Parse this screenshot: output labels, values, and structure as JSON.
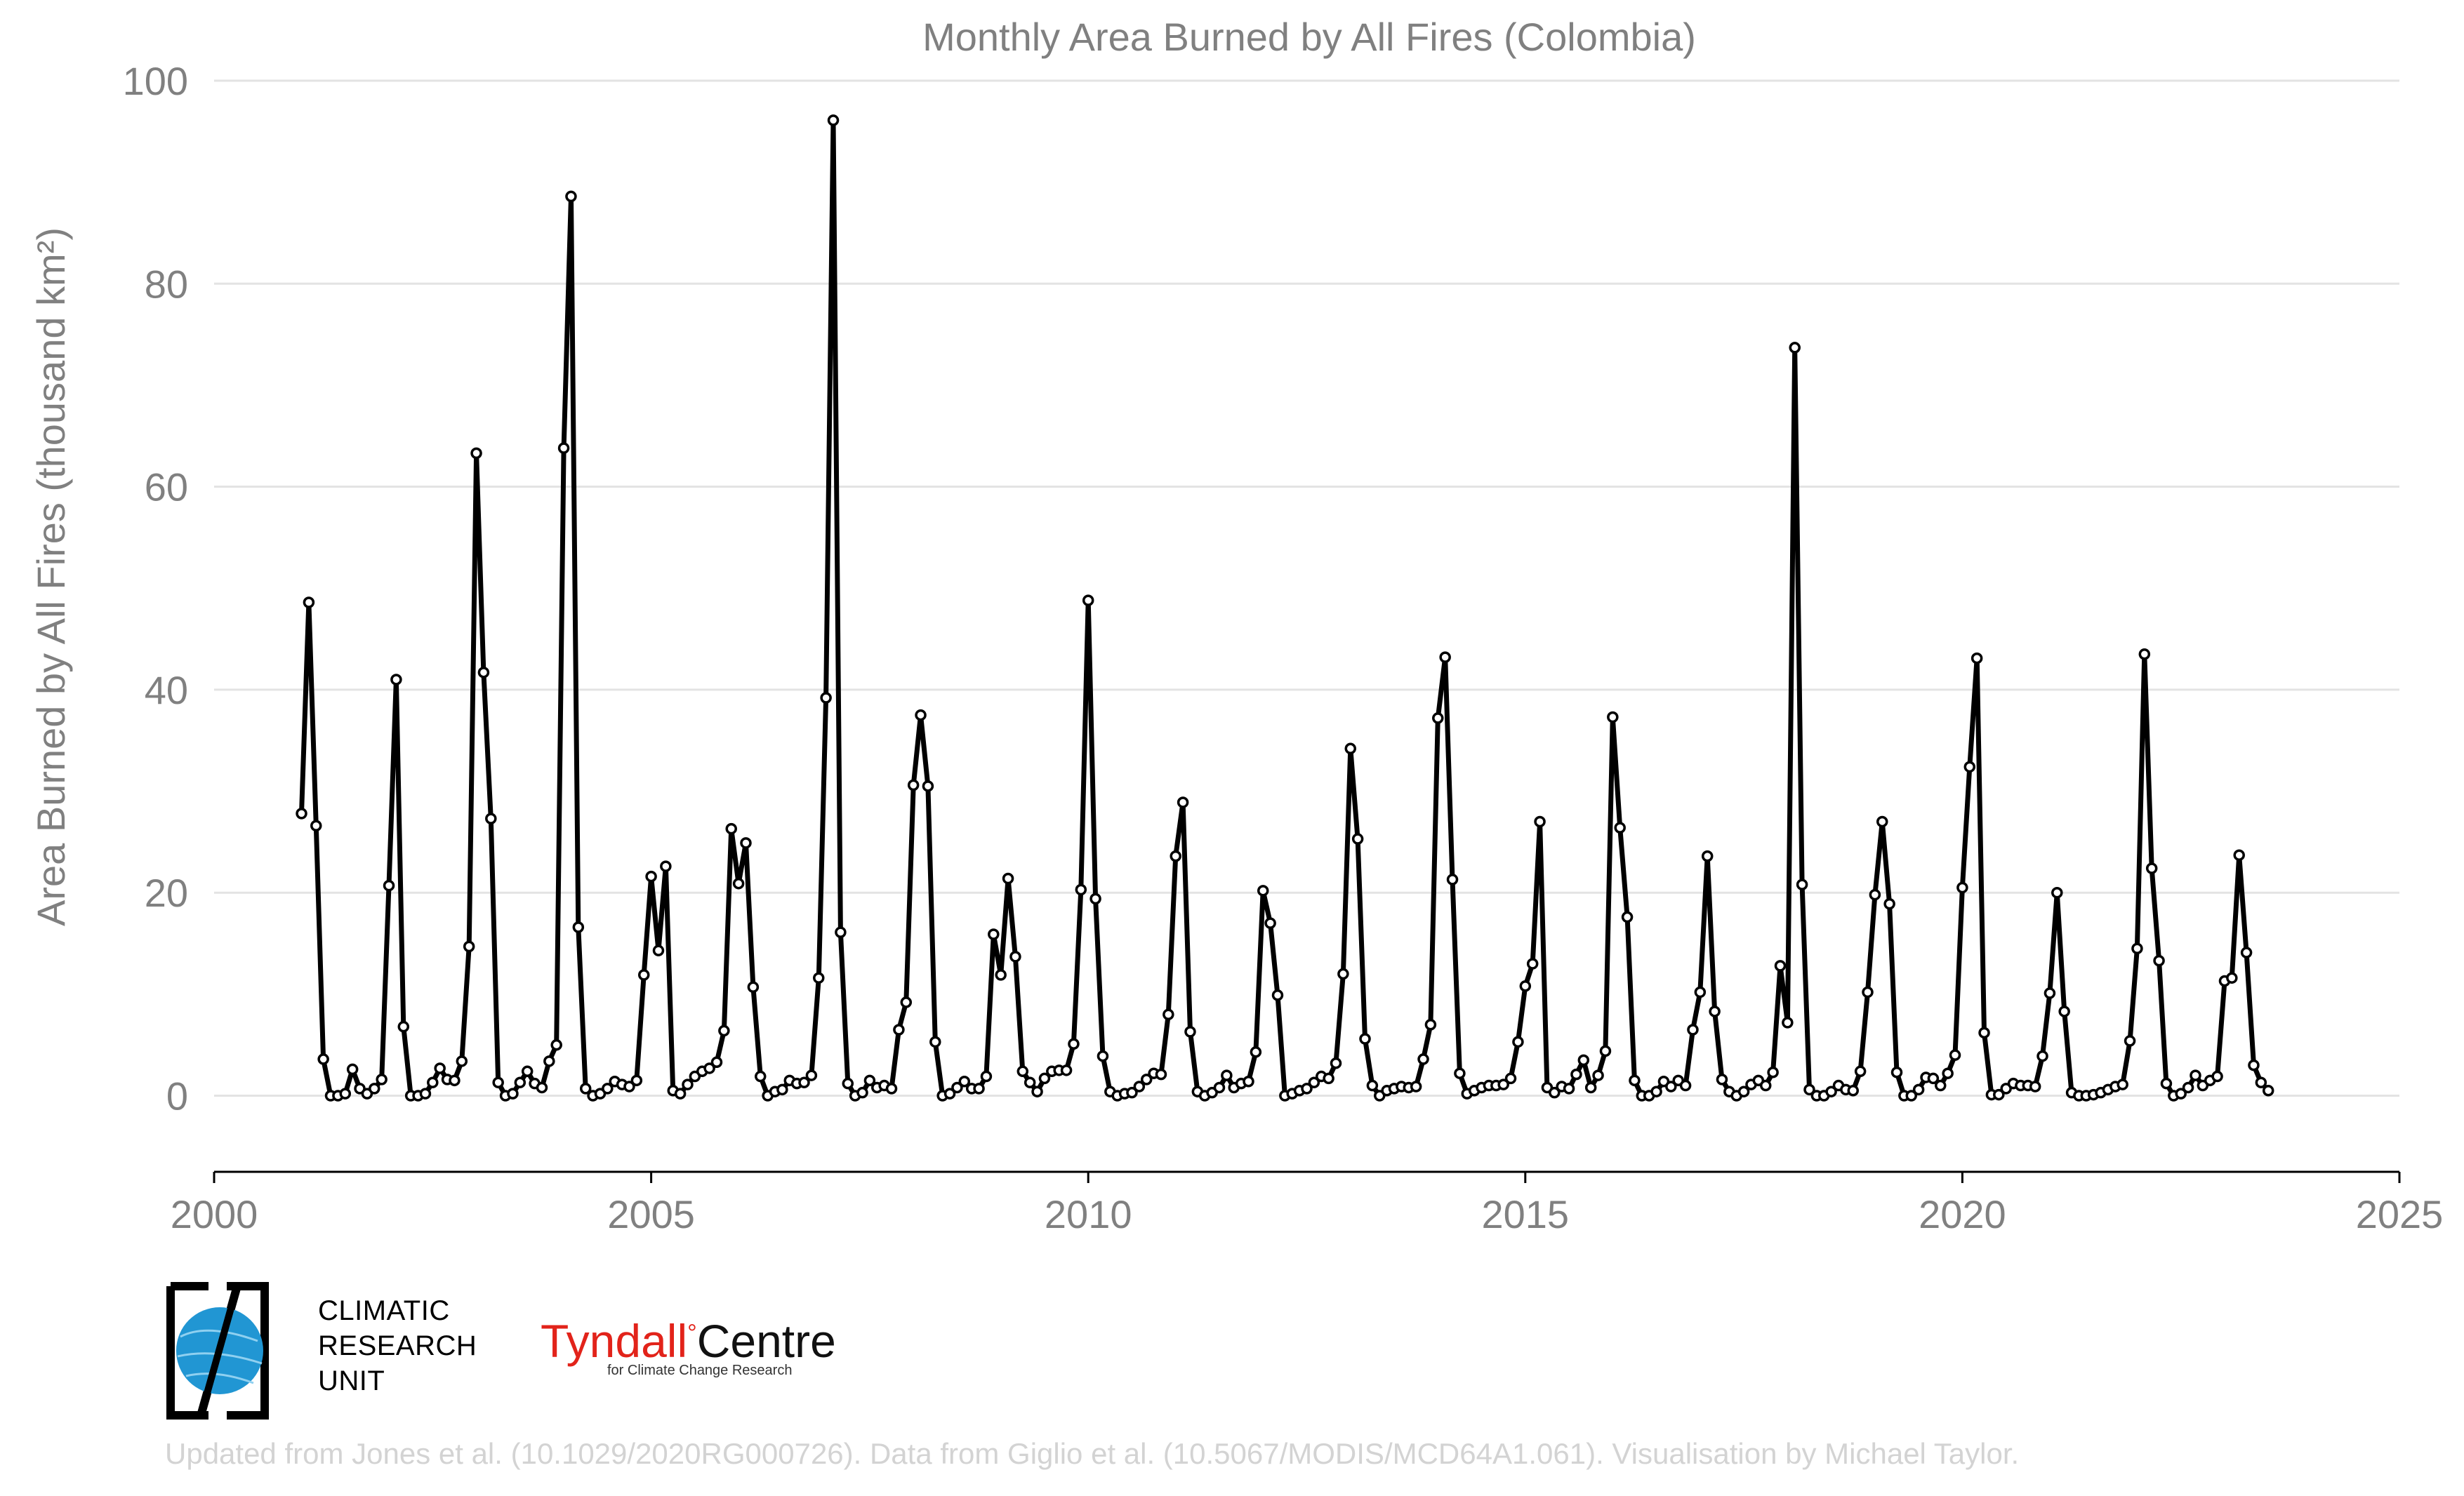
{
  "chart_data": {
    "type": "line",
    "title": "Monthly Area Burned by All Fires (Colombia)",
    "ylabel": "Area Burned by All Fires (thousand km²)",
    "xlabel": "",
    "xlim": [
      2000,
      2025
    ],
    "ylim": [
      -7.5,
      100
    ],
    "xticks": [
      2000,
      2005,
      2010,
      2015,
      2020,
      2025
    ],
    "yticks": [
      0,
      20,
      40,
      60,
      80,
      100
    ],
    "grid": "horizontal",
    "legend": "none",
    "x_start": "2001-01",
    "x_step": "1 month",
    "series": [
      {
        "values": [
          27.8,
          48.6,
          26.6,
          3.6,
          0,
          0,
          0.2,
          2.6,
          0.7,
          0.2,
          0.7,
          1.6,
          20.7,
          41.0,
          6.8,
          0,
          0,
          0.2,
          1.3,
          2.7,
          1.6,
          1.5,
          3.4,
          14.7,
          63.3,
          41.7,
          27.3,
          1.3,
          0,
          0.2,
          1.3,
          2.4,
          1.2,
          0.8,
          3.4,
          5.0,
          63.8,
          88.6,
          16.6,
          0.7,
          0,
          0.2,
          0.7,
          1.4,
          1.1,
          0.9,
          1.5,
          11.9,
          21.6,
          14.3,
          22.6,
          0.5,
          0.2,
          1.1,
          1.9,
          2.4,
          2.7,
          3.3,
          6.4,
          26.3,
          20.9,
          24.9,
          10.7,
          1.9,
          0,
          0.4,
          0.6,
          1.5,
          1.2,
          1.3,
          2.0,
          11.6,
          39.2,
          96.1,
          16.1,
          1.2,
          0,
          0.3,
          1.5,
          0.8,
          1.0,
          0.7,
          6.5,
          9.2,
          30.6,
          37.5,
          30.5,
          5.3,
          0,
          0.2,
          0.8,
          1.4,
          0.7,
          0.7,
          1.9,
          15.9,
          11.9,
          21.4,
          13.7,
          2.4,
          1.3,
          0.4,
          1.7,
          2.4,
          2.5,
          2.5,
          5.1,
          20.3,
          48.8,
          19.4,
          3.9,
          0.4,
          0,
          0.2,
          0.3,
          0.9,
          1.6,
          2.2,
          2.1,
          8.0,
          23.6,
          28.9,
          6.3,
          0.4,
          0,
          0.3,
          0.8,
          2.0,
          0.8,
          1.2,
          1.4,
          4.3,
          20.2,
          17.0,
          9.9,
          0,
          0.2,
          0.5,
          0.7,
          1.3,
          1.9,
          1.7,
          3.2,
          12.0,
          34.2,
          25.3,
          5.6,
          1.0,
          0,
          0.5,
          0.7,
          0.9,
          0.8,
          0.9,
          3.6,
          7.0,
          37.2,
          43.2,
          21.3,
          2.2,
          0.2,
          0.5,
          0.8,
          1.0,
          1.0,
          1.1,
          1.7,
          5.3,
          10.8,
          13.0,
          27.0,
          0.8,
          0.3,
          0.9,
          0.7,
          2.1,
          3.5,
          0.8,
          2.0,
          4.4,
          37.3,
          26.4,
          17.6,
          1.5,
          0,
          0,
          0.4,
          1.4,
          0.9,
          1.5,
          1.0,
          6.5,
          10.2,
          23.6,
          8.3,
          1.6,
          0.4,
          0,
          0.4,
          1.1,
          1.5,
          1.0,
          2.3,
          12.8,
          7.2,
          73.7,
          20.8,
          0.6,
          0,
          0,
          0.4,
          1.0,
          0.6,
          0.5,
          2.4,
          10.2,
          19.8,
          27.0,
          18.9,
          2.3,
          0,
          0,
          0.6,
          1.8,
          1.7,
          1.0,
          2.2,
          4.0,
          20.5,
          32.4,
          43.1,
          6.2,
          0.1,
          0.1,
          0.7,
          1.2,
          1.0,
          1.0,
          0.9,
          3.9,
          10.1,
          20.0,
          8.3,
          0.3,
          0,
          0,
          0.1,
          0.3,
          0.6,
          0.9,
          1.1,
          5.4,
          14.5,
          43.5,
          22.4,
          13.3,
          1.2,
          0,
          0.2,
          0.8,
          2.0,
          1.0,
          1.5,
          1.9,
          11.3,
          11.6,
          23.7,
          14.1,
          3.0,
          1.3,
          0.5
        ]
      }
    ]
  },
  "logos": {
    "cru": [
      "CLIMATIC",
      "RESEARCH",
      "UNIT"
    ],
    "tyndall_red": "Tyndall",
    "tyndall_degree": "°",
    "tyndall_black": "Centre",
    "tyndall_sub": "for Climate Change Research"
  },
  "footer": "Updated from Jones et al. (10.1029/2020RG000726). Data from Giglio et al. (10.5067/MODIS/MCD64A1.061). Visualisation by Michael Taylor.",
  "colors": {
    "line": "#000000",
    "grid": "#e3e3e3",
    "axis_text": "#808080",
    "footer_text": "#d3d3d3",
    "cru_blue": "#2196d3",
    "tyndall_red": "#e2231a"
  }
}
